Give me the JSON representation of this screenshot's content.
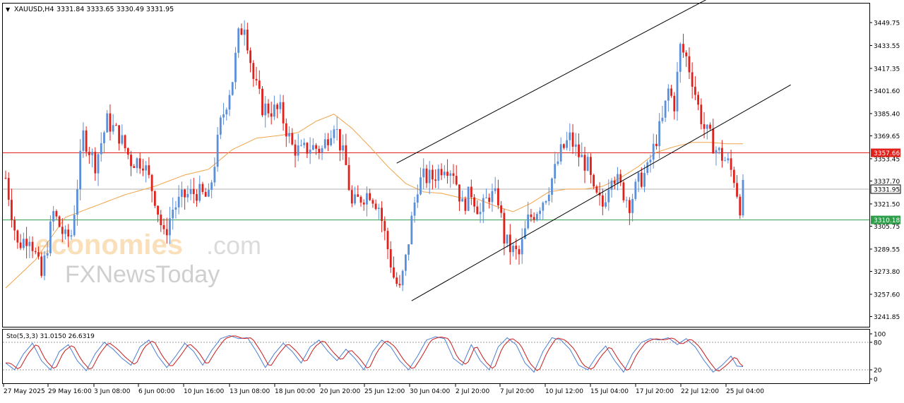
{
  "header": {
    "menu_arrow": "▼",
    "symbol": "XAUUSD,H4",
    "ohlc": "3331.84 3333.65 3330.49 3331.95"
  },
  "watermark": {
    "brand_a": "economies",
    "brand_a_tld": ".com",
    "brand_b": "FXNewsToday"
  },
  "indicator": {
    "label": "Sto(5,3,3) 31.0150 26.6319",
    "levels": [
      100,
      80,
      20,
      0
    ],
    "colors": {
      "main": "#4a7fd4",
      "signal": "#cc1b1b",
      "level": "#9a9a9a"
    }
  },
  "colors": {
    "bull": "#5b8fd9",
    "bear": "#e0201b",
    "ma": "#f0a44a",
    "resistance": "#e0201b",
    "support": "#2e9e4a",
    "current": "#b0b0b0",
    "channel": "#000000"
  },
  "chart_data": {
    "type": "candlestick",
    "symbol": "XAUUSD",
    "timeframe": "H4",
    "ylim": [
      3241.85,
      3460
    ],
    "y_ticks": [
      "3449.75",
      "3433.55",
      "3417.35",
      "3401.60",
      "3385.40",
      "3369.65",
      "3353.45",
      "3337.70",
      "3321.50",
      "3305.75",
      "3289.55",
      "3273.80",
      "3257.60",
      "3241.85"
    ],
    "x_ticks": [
      "27 May 2025",
      "29 May 16:00",
      "3 Jun 08:00",
      "6 Jun 00:00",
      "10 Jun 16:00",
      "13 Jun 08:00",
      "18 Jun 00:00",
      "20 Jun 20:00",
      "25 Jun 12:00",
      "30 Jun 04:00",
      "2 Jul 20:00",
      "7 Jul 20:00",
      "10 Jul 12:00",
      "15 Jul 04:00",
      "17 Jul 20:00",
      "22 Jul 12:00",
      "25 Jul 04:00"
    ],
    "close_path": [
      [
        0,
        3340
      ],
      [
        4,
        3292
      ],
      [
        8,
        3300
      ],
      [
        12,
        3270
      ],
      [
        16,
        3315
      ],
      [
        20,
        3297
      ],
      [
        22,
        3300
      ],
      [
        26,
        3370
      ],
      [
        30,
        3350
      ],
      [
        34,
        3380
      ],
      [
        38,
        3370
      ],
      [
        42,
        3352
      ],
      [
        46,
        3352
      ],
      [
        50,
        3326
      ],
      [
        53,
        3298
      ],
      [
        56,
        3318
      ],
      [
        60,
        3327
      ],
      [
        64,
        3330
      ],
      [
        68,
        3325
      ],
      [
        72,
        3378
      ],
      [
        76,
        3410
      ],
      [
        78,
        3440
      ],
      [
        80,
        3450
      ],
      [
        83,
        3410
      ],
      [
        86,
        3390
      ],
      [
        89,
        3388
      ],
      [
        92,
        3387
      ],
      [
        96,
        3362
      ],
      [
        99,
        3358
      ],
      [
        102,
        3362
      ],
      [
        106,
        3360
      ],
      [
        110,
        3380
      ],
      [
        114,
        3348
      ],
      [
        116,
        3320
      ],
      [
        119,
        3326
      ],
      [
        122,
        3330
      ],
      [
        125,
        3320
      ],
      [
        128,
        3290
      ],
      [
        130,
        3270
      ],
      [
        132,
        3260
      ],
      [
        134,
        3282
      ],
      [
        136,
        3310
      ],
      [
        138,
        3335
      ],
      [
        140,
        3340
      ],
      [
        143,
        3340
      ],
      [
        147,
        3350
      ],
      [
        150,
        3345
      ],
      [
        153,
        3320
      ],
      [
        156,
        3330
      ],
      [
        159,
        3315
      ],
      [
        162,
        3328
      ],
      [
        165,
        3325
      ],
      [
        167,
        3297
      ],
      [
        169,
        3290
      ],
      [
        172,
        3285
      ],
      [
        175,
        3310
      ],
      [
        178,
        3318
      ],
      [
        181,
        3328
      ],
      [
        184,
        3345
      ],
      [
        186,
        3358
      ],
      [
        189,
        3368
      ],
      [
        192,
        3356
      ],
      [
        195,
        3348
      ],
      [
        197,
        3328
      ],
      [
        200,
        3320
      ],
      [
        203,
        3345
      ],
      [
        206,
        3333
      ],
      [
        209,
        3322
      ],
      [
        212,
        3337
      ],
      [
        215,
        3345
      ],
      [
        218,
        3368
      ],
      [
        220,
        3380
      ],
      [
        222,
        3402
      ],
      [
        224,
        3392
      ],
      [
        226,
        3432
      ],
      [
        228,
        3425
      ],
      [
        230,
        3410
      ],
      [
        232,
        3390
      ],
      [
        234,
        3375
      ],
      [
        236,
        3368
      ],
      [
        238,
        3360
      ],
      [
        240,
        3355
      ],
      [
        242,
        3350
      ],
      [
        244,
        3340
      ],
      [
        246,
        3320
      ],
      [
        247,
        3332
      ]
    ],
    "ma_path": [
      [
        0,
        3262
      ],
      [
        10,
        3282
      ],
      [
        20,
        3312
      ],
      [
        30,
        3320
      ],
      [
        40,
        3328
      ],
      [
        50,
        3334
      ],
      [
        60,
        3342
      ],
      [
        68,
        3346
      ],
      [
        76,
        3360
      ],
      [
        84,
        3368
      ],
      [
        92,
        3370
      ],
      [
        98,
        3372
      ],
      [
        104,
        3380
      ],
      [
        110,
        3385
      ],
      [
        116,
        3375
      ],
      [
        122,
        3362
      ],
      [
        128,
        3348
      ],
      [
        134,
        3336
      ],
      [
        140,
        3330
      ],
      [
        146,
        3329
      ],
      [
        152,
        3326
      ],
      [
        158,
        3325
      ],
      [
        164,
        3320
      ],
      [
        170,
        3316
      ],
      [
        176,
        3322
      ],
      [
        182,
        3330
      ],
      [
        188,
        3332
      ],
      [
        194,
        3332
      ],
      [
        200,
        3334
      ],
      [
        206,
        3340
      ],
      [
        212,
        3348
      ],
      [
        218,
        3358
      ],
      [
        224,
        3362
      ],
      [
        230,
        3365
      ],
      [
        236,
        3365
      ],
      [
        242,
        3364
      ],
      [
        247,
        3364
      ]
    ],
    "stoch_path": [
      [
        0,
        35
      ],
      [
        3,
        20
      ],
      [
        6,
        55
      ],
      [
        9,
        78
      ],
      [
        12,
        40
      ],
      [
        15,
        20
      ],
      [
        18,
        60
      ],
      [
        21,
        75
      ],
      [
        24,
        40
      ],
      [
        27,
        18
      ],
      [
        30,
        55
      ],
      [
        33,
        80
      ],
      [
        36,
        65
      ],
      [
        39,
        45
      ],
      [
        42,
        30
      ],
      [
        45,
        70
      ],
      [
        48,
        85
      ],
      [
        51,
        50
      ],
      [
        54,
        25
      ],
      [
        57,
        50
      ],
      [
        60,
        78
      ],
      [
        63,
        60
      ],
      [
        66,
        30
      ],
      [
        69,
        62
      ],
      [
        72,
        88
      ],
      [
        75,
        95
      ],
      [
        78,
        88
      ],
      [
        81,
        90
      ],
      [
        84,
        60
      ],
      [
        87,
        25
      ],
      [
        90,
        55
      ],
      [
        93,
        78
      ],
      [
        96,
        60
      ],
      [
        99,
        35
      ],
      [
        102,
        70
      ],
      [
        105,
        85
      ],
      [
        108,
        60
      ],
      [
        111,
        40
      ],
      [
        114,
        65
      ],
      [
        117,
        45
      ],
      [
        120,
        20
      ],
      [
        123,
        60
      ],
      [
        126,
        85
      ],
      [
        129,
        70
      ],
      [
        132,
        40
      ],
      [
        135,
        20
      ],
      [
        138,
        50
      ],
      [
        141,
        85
      ],
      [
        144,
        92
      ],
      [
        147,
        88
      ],
      [
        150,
        45
      ],
      [
        153,
        30
      ],
      [
        156,
        75
      ],
      [
        159,
        40
      ],
      [
        162,
        20
      ],
      [
        165,
        70
      ],
      [
        168,
        90
      ],
      [
        171,
        75
      ],
      [
        174,
        35
      ],
      [
        177,
        15
      ],
      [
        180,
        60
      ],
      [
        183,
        90
      ],
      [
        186,
        85
      ],
      [
        189,
        65
      ],
      [
        192,
        30
      ],
      [
        195,
        20
      ],
      [
        198,
        50
      ],
      [
        201,
        72
      ],
      [
        204,
        40
      ],
      [
        207,
        15
      ],
      [
        210,
        55
      ],
      [
        213,
        80
      ],
      [
        216,
        88
      ],
      [
        219,
        85
      ],
      [
        222,
        90
      ],
      [
        225,
        75
      ],
      [
        228,
        88
      ],
      [
        231,
        70
      ],
      [
        234,
        40
      ],
      [
        237,
        15
      ],
      [
        240,
        30
      ],
      [
        243,
        50
      ],
      [
        245,
        28
      ],
      [
        247,
        27
      ]
    ],
    "levels": {
      "resistance": 3357.66,
      "current": 3331.95,
      "support": 3310.18
    },
    "level_labels": {
      "resistance": "3357.66",
      "current": "3331.95",
      "support": "3310.18"
    },
    "channel": {
      "upper": [
        [
          137,
          3357
        ],
        [
          215,
          3444
        ]
      ],
      "lower": [
        [
          136,
          3253
        ],
        [
          220,
          3354
        ]
      ]
    },
    "candle_count": 248
  }
}
